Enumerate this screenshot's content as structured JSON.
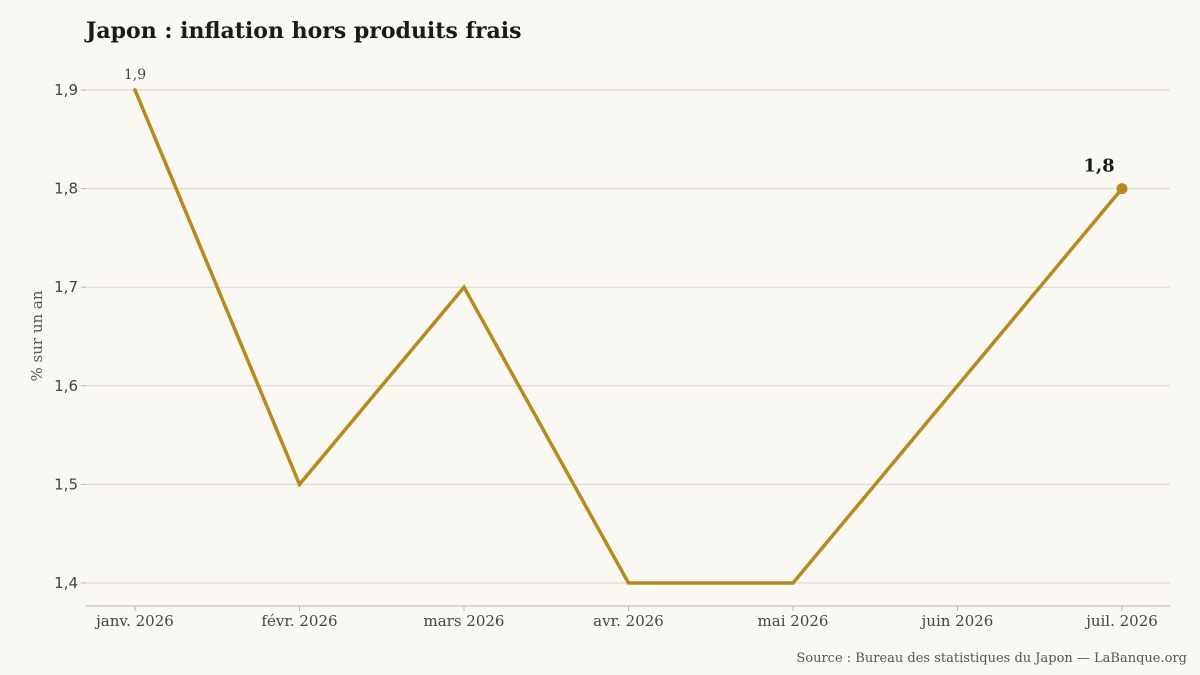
{
  "title": "Japon : inflation hors produits frais",
  "source": "Source : Bureau des statistiques du Japon — LaBanque.org",
  "colors": {
    "background": "#faf8f2",
    "series": "#b8891c",
    "grid": "#d9d5c8"
  },
  "chart_data": {
    "type": "line",
    "title": "Japon : inflation hors produits frais",
    "xlabel": "",
    "ylabel": "% sur un an",
    "categories": [
      "janv. 2026",
      "févr. 2026",
      "mars 2026",
      "avr. 2026",
      "mai 2026",
      "juin 2026",
      "juil. 2026"
    ],
    "series": [
      {
        "values": [
          1.9,
          1.5,
          1.7,
          1.4,
          1.4,
          1.6,
          1.8
        ]
      }
    ],
    "yticks": [
      1.4,
      1.5,
      1.6,
      1.7,
      1.8,
      1.9
    ],
    "ytick_labels": [
      "1,4",
      "1,5",
      "1,6",
      "1,7",
      "1,8",
      "1,9"
    ],
    "ylim": [
      1.4,
      1.9
    ],
    "grid": true,
    "data_labels": {
      "first": "1,9",
      "last": "1,8"
    }
  }
}
